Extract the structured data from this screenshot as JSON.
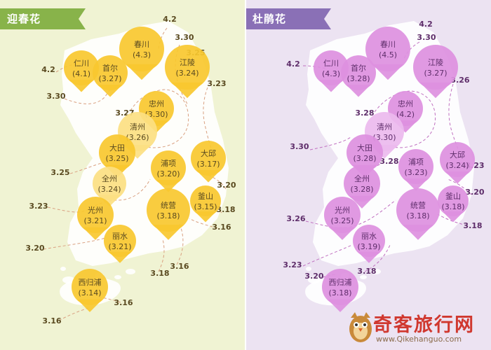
{
  "left": {
    "title": "迎春花",
    "colors": {
      "bg": "#f0f3d3",
      "land": "#ffffff",
      "pin": "#f9c82f",
      "pin_light": "#fcdf82",
      "text": "#5a4a20",
      "line": "#d9a080",
      "tag": "#88b34a"
    },
    "cities": [
      {
        "name": "春川",
        "date": "(4.3)"
      },
      {
        "name": "仁川",
        "date": "(4.1)"
      },
      {
        "name": "首尔",
        "date": "(3.27)"
      },
      {
        "name": "江陵",
        "date": "(3.24)"
      },
      {
        "name": "忠州",
        "date": "(3.30)"
      },
      {
        "name": "清州",
        "date": "(3.26)"
      },
      {
        "name": "大田",
        "date": "(3.25)"
      },
      {
        "name": "浦项",
        "date": "(3.20)"
      },
      {
        "name": "大邱",
        "date": "(3.17)"
      },
      {
        "name": "全州",
        "date": "(3.24)"
      },
      {
        "name": "釜山",
        "date": "(3.15)"
      },
      {
        "name": "统营",
        "date": "(3.18)"
      },
      {
        "name": "光州",
        "date": "(3.21)"
      },
      {
        "name": "丽水",
        "date": "(3.21)"
      },
      {
        "name": "西归浦",
        "date": "(3.14)"
      }
    ],
    "isolines": [
      "4.2",
      "3.30",
      "4.2",
      "3.30",
      "3.25",
      "3.23",
      "3.27",
      "3.25",
      "3.23",
      "3.20",
      "3.18",
      "3.16",
      "3.20",
      "3.16",
      "3.18",
      "3.16",
      "3.16"
    ]
  },
  "right": {
    "title": "杜鹃花",
    "colors": {
      "bg": "#ece3f2",
      "land": "#ffffff",
      "pin": "#dd90df",
      "pin_light": "#ecbaee",
      "text": "#5e2d6a",
      "line": "#c070c0",
      "tag": "#8a70b6"
    },
    "cities": [
      {
        "name": "春川",
        "date": "(4.5)"
      },
      {
        "name": "仁川",
        "date": "(4.3)"
      },
      {
        "name": "首尔",
        "date": "(3.28)"
      },
      {
        "name": "江陵",
        "date": "(3.27)"
      },
      {
        "name": "忠州",
        "date": "(4.2)"
      },
      {
        "name": "清州",
        "date": "(3.30)"
      },
      {
        "name": "大田",
        "date": "(3.28)"
      },
      {
        "name": "浦项",
        "date": "(3.23)"
      },
      {
        "name": "大邱",
        "date": "(3.24)"
      },
      {
        "name": "全州",
        "date": "(3.28)"
      },
      {
        "name": "釜山",
        "date": "(3.18)"
      },
      {
        "name": "统营",
        "date": "(3.18)"
      },
      {
        "name": "光州",
        "date": "(3.25)"
      },
      {
        "name": "丽水",
        "date": "(3.19)"
      },
      {
        "name": "西归浦",
        "date": "(3.18)"
      }
    ],
    "isolines": [
      "4.2",
      "3.30",
      "4.2",
      "3.26",
      "3.28",
      "3.30",
      "3.28",
      "3.23",
      "3.20",
      "3.26",
      "3.18",
      "3.23",
      "3.18",
      "3.20"
    ]
  },
  "watermark": {
    "name": "奇客旅行网",
    "url": "www.Qikehanguo.com",
    "colors": {
      "name": "#d0382f",
      "url": "#8a6b4b"
    }
  }
}
